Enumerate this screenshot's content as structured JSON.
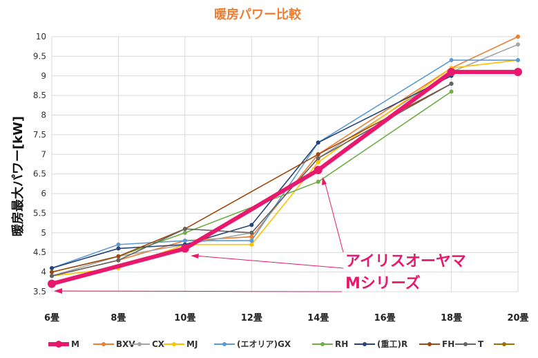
{
  "chart_data": {
    "type": "line",
    "title": "暖房パワー比較",
    "ylabel": "暖房最大パワー[kW]",
    "xlabel": "",
    "categories": [
      "6畳",
      "8畳",
      "10畳",
      "12畳",
      "14畳",
      "16畳",
      "18畳",
      "20畳"
    ],
    "ylim": [
      3.5,
      10
    ],
    "yticks": [
      "3.5",
      "4",
      "4.5",
      "5",
      "5.5",
      "6",
      "6.5",
      "7",
      "7.5",
      "8",
      "8.5",
      "9",
      "9.5",
      "10"
    ],
    "grid": true,
    "legend_position": "bottom",
    "series": [
      {
        "name": "M",
        "color": "#e8196c",
        "highlight": true,
        "x": [
          "6畳",
          "10畳",
          "14畳",
          "18畳",
          "20畳"
        ],
        "values": [
          3.7,
          4.6,
          6.6,
          9.1,
          9.1
        ]
      },
      {
        "name": "BXV",
        "color": "#ed7d31",
        "x": [
          "6畳",
          "8畳",
          "10畳",
          "12畳",
          "14畳",
          "18畳",
          "20畳"
        ],
        "values": [
          3.9,
          4.3,
          4.8,
          4.9,
          7.0,
          9.2,
          10.0
        ]
      },
      {
        "name": "CX",
        "color": "#a5a5a5",
        "x": [
          "6畳",
          "8畳",
          "10畳",
          "12畳",
          "14畳",
          "18畳",
          "20畳"
        ],
        "values": [
          3.9,
          4.4,
          4.7,
          5.0,
          6.9,
          9.1,
          9.8
        ]
      },
      {
        "name": "MJ",
        "color": "#ffc000",
        "x": [
          "6畳",
          "8畳",
          "10畳",
          "12畳",
          "14畳",
          "18畳",
          "20畳"
        ],
        "values": [
          3.9,
          4.1,
          4.7,
          4.7,
          6.8,
          9.2,
          9.4
        ]
      },
      {
        "name": "(エオリア)GX",
        "color": "#5b9bd5",
        "x": [
          "6畳",
          "8畳",
          "10畳",
          "12畳",
          "14畳",
          "18畳",
          "20畳"
        ],
        "values": [
          4.1,
          4.7,
          4.8,
          4.8,
          7.3,
          9.4,
          9.4
        ]
      },
      {
        "name": "RH",
        "color": "#70ad47",
        "x": [
          "6畳",
          "8畳",
          "10畳",
          "14畳",
          "18畳"
        ],
        "values": [
          4.0,
          4.4,
          5.0,
          6.3,
          8.6
        ]
      },
      {
        "name": "(重工)R",
        "color": "#264478",
        "x": [
          "6畳",
          "8畳",
          "10畳",
          "12畳",
          "14畳",
          "18畳"
        ],
        "values": [
          4.1,
          4.6,
          4.7,
          5.2,
          7.3,
          9.0
        ]
      },
      {
        "name": "FH",
        "color": "#9e480e",
        "x": [
          "6畳",
          "8畳",
          "10畳",
          "14畳",
          "18畳"
        ],
        "values": [
          4.0,
          4.4,
          5.1,
          7.0,
          8.8
        ]
      },
      {
        "name": "T",
        "color": "#636363",
        "x": [
          "6畳",
          "8畳",
          "10畳",
          "12畳",
          "14畳",
          "18畳"
        ],
        "values": [
          3.9,
          4.3,
          5.1,
          5.0,
          6.9,
          8.8
        ]
      },
      {
        "name": "",
        "color": "#997300",
        "x": [],
        "values": []
      }
    ],
    "annotation": {
      "lines": [
        "アイリスオーヤマ",
        "Mシリーズ"
      ]
    }
  }
}
